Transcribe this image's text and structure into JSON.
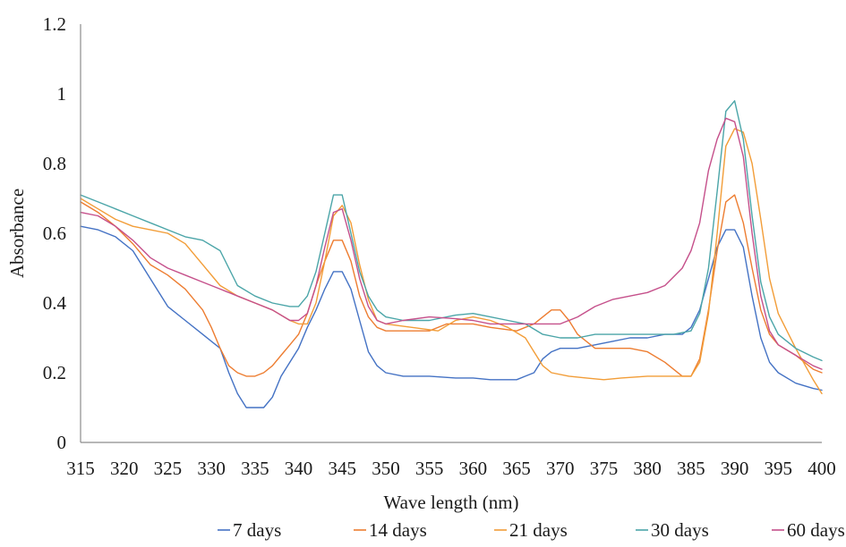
{
  "chart_data": {
    "type": "line",
    "xlabel": "Wave length (nm)",
    "ylabel": "Absorbance",
    "xlim": [
      315,
      400
    ],
    "ylim": [
      0,
      1.2
    ],
    "x_ticks": [
      "315",
      "320",
      "325",
      "330",
      "335",
      "340",
      "345",
      "350",
      "355",
      "360",
      "365",
      "370",
      "375",
      "380",
      "385",
      "390",
      "395",
      "400"
    ],
    "y_ticks": [
      "0",
      "0.2",
      "0.4",
      "0.6",
      "0.8",
      "1",
      "1.2"
    ],
    "grid": false,
    "legend_position": "bottom",
    "series": [
      {
        "name": "7 days",
        "color": "#4472c4",
        "points": [
          [
            315,
            0.62
          ],
          [
            317,
            0.61
          ],
          [
            319,
            0.59
          ],
          [
            321,
            0.55
          ],
          [
            323,
            0.47
          ],
          [
            325,
            0.39
          ],
          [
            327,
            0.35
          ],
          [
            329,
            0.31
          ],
          [
            331,
            0.27
          ],
          [
            332,
            0.2
          ],
          [
            333,
            0.14
          ],
          [
            334,
            0.1
          ],
          [
            335,
            0.1
          ],
          [
            336,
            0.1
          ],
          [
            337,
            0.13
          ],
          [
            338,
            0.19
          ],
          [
            340,
            0.27
          ],
          [
            341,
            0.33
          ],
          [
            342,
            0.38
          ],
          [
            343,
            0.44
          ],
          [
            344,
            0.49
          ],
          [
            345,
            0.49
          ],
          [
            346,
            0.44
          ],
          [
            347,
            0.35
          ],
          [
            348,
            0.26
          ],
          [
            349,
            0.22
          ],
          [
            350,
            0.2
          ],
          [
            352,
            0.19
          ],
          [
            355,
            0.19
          ],
          [
            358,
            0.185
          ],
          [
            360,
            0.185
          ],
          [
            362,
            0.18
          ],
          [
            365,
            0.18
          ],
          [
            366,
            0.19
          ],
          [
            367,
            0.2
          ],
          [
            368,
            0.24
          ],
          [
            369,
            0.26
          ],
          [
            370,
            0.27
          ],
          [
            372,
            0.27
          ],
          [
            374,
            0.28
          ],
          [
            376,
            0.29
          ],
          [
            378,
            0.3
          ],
          [
            380,
            0.3
          ],
          [
            382,
            0.31
          ],
          [
            384,
            0.31
          ],
          [
            385,
            0.33
          ],
          [
            386,
            0.38
          ],
          [
            387,
            0.47
          ],
          [
            388,
            0.56
          ],
          [
            389,
            0.61
          ],
          [
            390,
            0.61
          ],
          [
            391,
            0.56
          ],
          [
            392,
            0.42
          ],
          [
            393,
            0.3
          ],
          [
            394,
            0.23
          ],
          [
            395,
            0.2
          ],
          [
            397,
            0.17
          ],
          [
            399,
            0.155
          ],
          [
            400,
            0.15
          ]
        ]
      },
      {
        "name": "14 days",
        "color": "#ed7d31",
        "points": [
          [
            315,
            0.69
          ],
          [
            317,
            0.66
          ],
          [
            319,
            0.62
          ],
          [
            321,
            0.57
          ],
          [
            323,
            0.51
          ],
          [
            325,
            0.48
          ],
          [
            327,
            0.44
          ],
          [
            329,
            0.38
          ],
          [
            330,
            0.33
          ],
          [
            331,
            0.27
          ],
          [
            332,
            0.22
          ],
          [
            333,
            0.2
          ],
          [
            334,
            0.19
          ],
          [
            335,
            0.19
          ],
          [
            336,
            0.2
          ],
          [
            337,
            0.22
          ],
          [
            338,
            0.25
          ],
          [
            339,
            0.28
          ],
          [
            340,
            0.31
          ],
          [
            341,
            0.37
          ],
          [
            342,
            0.45
          ],
          [
            343,
            0.52
          ],
          [
            344,
            0.58
          ],
          [
            345,
            0.58
          ],
          [
            346,
            0.52
          ],
          [
            347,
            0.42
          ],
          [
            348,
            0.36
          ],
          [
            349,
            0.33
          ],
          [
            350,
            0.32
          ],
          [
            355,
            0.32
          ],
          [
            357,
            0.34
          ],
          [
            360,
            0.34
          ],
          [
            362,
            0.33
          ],
          [
            365,
            0.32
          ],
          [
            367,
            0.34
          ],
          [
            368,
            0.36
          ],
          [
            369,
            0.38
          ],
          [
            370,
            0.38
          ],
          [
            371,
            0.35
          ],
          [
            372,
            0.31
          ],
          [
            374,
            0.27
          ],
          [
            376,
            0.27
          ],
          [
            378,
            0.27
          ],
          [
            380,
            0.26
          ],
          [
            382,
            0.23
          ],
          [
            384,
            0.19
          ],
          [
            385,
            0.19
          ],
          [
            386,
            0.24
          ],
          [
            387,
            0.38
          ],
          [
            388,
            0.55
          ],
          [
            389,
            0.69
          ],
          [
            390,
            0.71
          ],
          [
            391,
            0.63
          ],
          [
            392,
            0.5
          ],
          [
            393,
            0.38
          ],
          [
            394,
            0.31
          ],
          [
            395,
            0.28
          ],
          [
            397,
            0.25
          ],
          [
            399,
            0.21
          ],
          [
            400,
            0.2
          ]
        ]
      },
      {
        "name": "21 days",
        "color": "#f29d38",
        "points": [
          [
            315,
            0.7
          ],
          [
            317,
            0.67
          ],
          [
            319,
            0.64
          ],
          [
            321,
            0.62
          ],
          [
            323,
            0.61
          ],
          [
            325,
            0.6
          ],
          [
            327,
            0.57
          ],
          [
            329,
            0.51
          ],
          [
            331,
            0.45
          ],
          [
            333,
            0.42
          ],
          [
            335,
            0.4
          ],
          [
            337,
            0.38
          ],
          [
            339,
            0.35
          ],
          [
            340,
            0.34
          ],
          [
            341,
            0.34
          ],
          [
            342,
            0.4
          ],
          [
            343,
            0.52
          ],
          [
            344,
            0.65
          ],
          [
            345,
            0.68
          ],
          [
            346,
            0.63
          ],
          [
            347,
            0.51
          ],
          [
            348,
            0.41
          ],
          [
            349,
            0.35
          ],
          [
            350,
            0.34
          ],
          [
            353,
            0.33
          ],
          [
            356,
            0.32
          ],
          [
            358,
            0.35
          ],
          [
            360,
            0.36
          ],
          [
            362,
            0.35
          ],
          [
            364,
            0.33
          ],
          [
            366,
            0.3
          ],
          [
            367,
            0.26
          ],
          [
            368,
            0.22
          ],
          [
            369,
            0.2
          ],
          [
            371,
            0.19
          ],
          [
            373,
            0.185
          ],
          [
            375,
            0.18
          ],
          [
            377,
            0.185
          ],
          [
            380,
            0.19
          ],
          [
            383,
            0.19
          ],
          [
            385,
            0.19
          ],
          [
            386,
            0.23
          ],
          [
            387,
            0.37
          ],
          [
            388,
            0.6
          ],
          [
            389,
            0.85
          ],
          [
            390,
            0.9
          ],
          [
            391,
            0.89
          ],
          [
            392,
            0.8
          ],
          [
            393,
            0.64
          ],
          [
            394,
            0.47
          ],
          [
            395,
            0.37
          ],
          [
            397,
            0.27
          ],
          [
            399,
            0.18
          ],
          [
            400,
            0.14
          ]
        ]
      },
      {
        "name": "30 days",
        "color": "#4ba5a8",
        "points": [
          [
            315,
            0.71
          ],
          [
            317,
            0.69
          ],
          [
            319,
            0.67
          ],
          [
            321,
            0.65
          ],
          [
            323,
            0.63
          ],
          [
            325,
            0.61
          ],
          [
            327,
            0.59
          ],
          [
            329,
            0.58
          ],
          [
            331,
            0.55
          ],
          [
            332,
            0.5
          ],
          [
            333,
            0.45
          ],
          [
            335,
            0.42
          ],
          [
            337,
            0.4
          ],
          [
            339,
            0.39
          ],
          [
            340,
            0.39
          ],
          [
            341,
            0.42
          ],
          [
            342,
            0.49
          ],
          [
            343,
            0.6
          ],
          [
            344,
            0.71
          ],
          [
            345,
            0.71
          ],
          [
            346,
            0.6
          ],
          [
            347,
            0.49
          ],
          [
            348,
            0.42
          ],
          [
            349,
            0.38
          ],
          [
            350,
            0.36
          ],
          [
            352,
            0.35
          ],
          [
            355,
            0.35
          ],
          [
            358,
            0.365
          ],
          [
            360,
            0.37
          ],
          [
            362,
            0.36
          ],
          [
            364,
            0.35
          ],
          [
            366,
            0.34
          ],
          [
            368,
            0.31
          ],
          [
            370,
            0.3
          ],
          [
            372,
            0.3
          ],
          [
            374,
            0.31
          ],
          [
            376,
            0.31
          ],
          [
            380,
            0.31
          ],
          [
            383,
            0.31
          ],
          [
            385,
            0.32
          ],
          [
            386,
            0.37
          ],
          [
            387,
            0.5
          ],
          [
            388,
            0.72
          ],
          [
            389,
            0.95
          ],
          [
            390,
            0.98
          ],
          [
            391,
            0.87
          ],
          [
            392,
            0.65
          ],
          [
            393,
            0.46
          ],
          [
            394,
            0.36
          ],
          [
            395,
            0.31
          ],
          [
            397,
            0.27
          ],
          [
            399,
            0.245
          ],
          [
            400,
            0.235
          ]
        ]
      },
      {
        "name": "60 days",
        "color": "#c5508b",
        "points": [
          [
            315,
            0.66
          ],
          [
            317,
            0.65
          ],
          [
            319,
            0.62
          ],
          [
            321,
            0.58
          ],
          [
            323,
            0.53
          ],
          [
            325,
            0.5
          ],
          [
            327,
            0.48
          ],
          [
            329,
            0.46
          ],
          [
            331,
            0.44
          ],
          [
            333,
            0.42
          ],
          [
            335,
            0.4
          ],
          [
            337,
            0.38
          ],
          [
            339,
            0.35
          ],
          [
            340,
            0.35
          ],
          [
            341,
            0.37
          ],
          [
            342,
            0.45
          ],
          [
            343,
            0.56
          ],
          [
            344,
            0.66
          ],
          [
            345,
            0.67
          ],
          [
            346,
            0.58
          ],
          [
            347,
            0.47
          ],
          [
            348,
            0.39
          ],
          [
            349,
            0.35
          ],
          [
            350,
            0.34
          ],
          [
            352,
            0.35
          ],
          [
            355,
            0.36
          ],
          [
            358,
            0.355
          ],
          [
            360,
            0.35
          ],
          [
            362,
            0.34
          ],
          [
            364,
            0.34
          ],
          [
            366,
            0.34
          ],
          [
            368,
            0.34
          ],
          [
            370,
            0.34
          ],
          [
            372,
            0.36
          ],
          [
            374,
            0.39
          ],
          [
            376,
            0.41
          ],
          [
            378,
            0.42
          ],
          [
            380,
            0.43
          ],
          [
            382,
            0.45
          ],
          [
            384,
            0.5
          ],
          [
            385,
            0.55
          ],
          [
            386,
            0.63
          ],
          [
            387,
            0.78
          ],
          [
            388,
            0.87
          ],
          [
            389,
            0.93
          ],
          [
            390,
            0.92
          ],
          [
            391,
            0.82
          ],
          [
            392,
            0.6
          ],
          [
            393,
            0.42
          ],
          [
            394,
            0.32
          ],
          [
            395,
            0.28
          ],
          [
            397,
            0.25
          ],
          [
            399,
            0.22
          ],
          [
            400,
            0.21
          ]
        ]
      }
    ]
  }
}
